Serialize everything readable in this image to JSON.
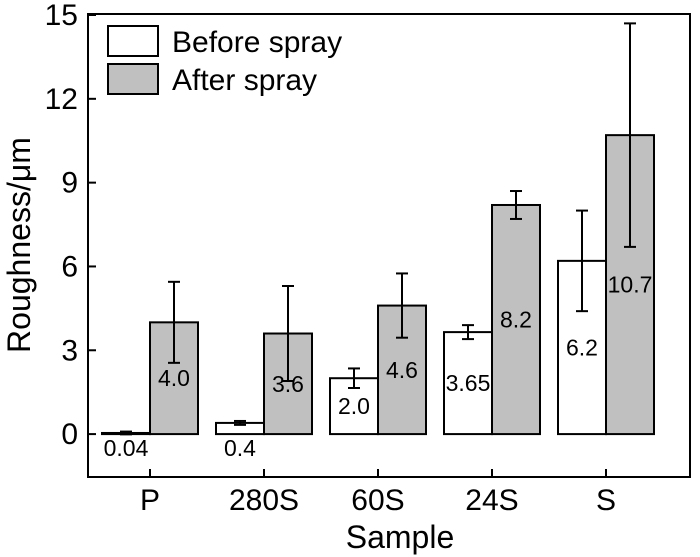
{
  "chart_data": {
    "type": "bar",
    "title": "",
    "xlabel": "Sample",
    "ylabel": "Roughness/μm",
    "categories": [
      "P",
      "280S",
      "60S",
      "24S",
      "S"
    ],
    "ylim": [
      -1.5,
      15
    ],
    "yticks": [
      0,
      3,
      6,
      9,
      12,
      15
    ],
    "grid": false,
    "legend_position": "top-left",
    "series": [
      {
        "name": "Before spray",
        "color": "#ffffff",
        "values": [
          0.04,
          0.4,
          2.0,
          3.65,
          6.2
        ],
        "labels": [
          "0.04",
          "0.4",
          "2.0",
          "3.65",
          "6.2"
        ],
        "error": [
          0.05,
          0.07,
          0.35,
          0.25,
          1.8
        ]
      },
      {
        "name": "After spray",
        "color": "#c0c0c0",
        "values": [
          4.0,
          3.6,
          4.6,
          8.2,
          10.7
        ],
        "labels": [
          "4.0",
          "3.6",
          "4.6",
          "8.2",
          "10.7"
        ],
        "error": [
          1.45,
          1.7,
          1.15,
          0.5,
          4.0
        ]
      }
    ]
  }
}
